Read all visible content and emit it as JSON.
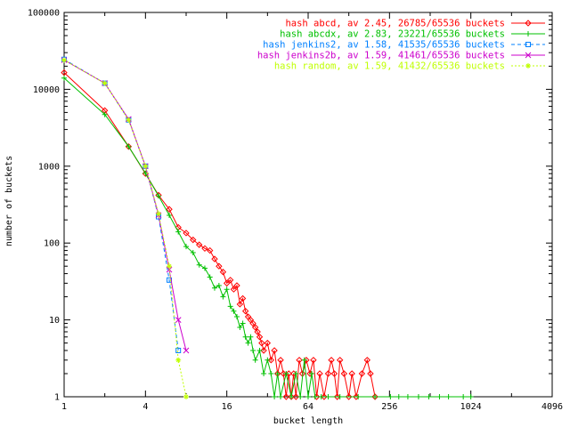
{
  "chart_data": {
    "type": "line",
    "title": "",
    "xlabel": "bucket length",
    "ylabel": "number of buckets",
    "x_scale": "log2",
    "y_scale": "log10",
    "xlim": [
      1,
      4096
    ],
    "ylim": [
      1,
      100000
    ],
    "x_ticks": [
      "1",
      "4",
      "16",
      "64",
      "256",
      "1024",
      "4096"
    ],
    "y_ticks": [
      "1",
      "10",
      "100",
      "1000",
      "10000",
      "100000"
    ],
    "grid": false,
    "legend_position": "top-right",
    "series": [
      {
        "name": "hash abcd, av 2.45, 26785/65536 buckets",
        "color": "#ff0000",
        "marker": "diamond",
        "points": [
          [
            1,
            16500
          ],
          [
            2,
            5300
          ],
          [
            3,
            1800
          ],
          [
            4,
            800
          ],
          [
            5,
            420
          ],
          [
            6,
            275
          ],
          [
            7,
            160
          ],
          [
            8,
            135
          ],
          [
            9,
            110
          ],
          [
            10,
            95
          ],
          [
            11,
            85
          ],
          [
            12,
            80
          ],
          [
            13,
            62
          ],
          [
            14,
            50
          ],
          [
            15,
            42
          ],
          [
            16,
            30
          ],
          [
            17,
            33
          ],
          [
            18,
            25
          ],
          [
            19,
            28
          ],
          [
            20,
            16
          ],
          [
            21,
            19
          ],
          [
            22,
            13
          ],
          [
            23,
            11
          ],
          [
            24,
            10
          ],
          [
            25,
            9
          ],
          [
            26,
            8
          ],
          [
            27,
            7
          ],
          [
            28,
            6
          ],
          [
            29,
            5
          ],
          [
            30,
            4
          ],
          [
            32,
            5
          ],
          [
            34,
            3
          ],
          [
            36,
            4
          ],
          [
            38,
            2
          ],
          [
            40,
            3
          ],
          [
            42,
            2
          ],
          [
            44,
            1
          ],
          [
            46,
            2
          ],
          [
            48,
            1
          ],
          [
            50,
            2
          ],
          [
            52,
            1
          ],
          [
            55,
            3
          ],
          [
            58,
            2
          ],
          [
            62,
            3
          ],
          [
            66,
            2
          ],
          [
            70,
            3
          ],
          [
            74,
            1
          ],
          [
            78,
            2
          ],
          [
            84,
            1
          ],
          [
            90,
            2
          ],
          [
            95,
            3
          ],
          [
            100,
            2
          ],
          [
            105,
            1
          ],
          [
            110,
            3
          ],
          [
            118,
            2
          ],
          [
            128,
            1
          ],
          [
            135,
            2
          ],
          [
            145,
            1
          ],
          [
            160,
            2
          ],
          [
            175,
            3
          ],
          [
            185,
            2
          ],
          [
            200,
            1
          ]
        ]
      },
      {
        "name": "hash abcdx, av 2.83, 23221/65536 buckets",
        "color": "#00c000",
        "marker": "plus",
        "points": [
          [
            1,
            14000
          ],
          [
            2,
            4700
          ],
          [
            3,
            1800
          ],
          [
            4,
            810
          ],
          [
            5,
            410
          ],
          [
            6,
            230
          ],
          [
            7,
            140
          ],
          [
            8,
            90
          ],
          [
            9,
            75
          ],
          [
            10,
            52
          ],
          [
            11,
            47
          ],
          [
            12,
            36
          ],
          [
            13,
            26
          ],
          [
            14,
            28
          ],
          [
            15,
            20
          ],
          [
            16,
            25
          ],
          [
            17,
            15
          ],
          [
            18,
            13
          ],
          [
            19,
            11
          ],
          [
            20,
            8
          ],
          [
            21,
            9
          ],
          [
            22,
            6
          ],
          [
            23,
            5
          ],
          [
            24,
            6
          ],
          [
            25,
            4
          ],
          [
            26,
            3
          ],
          [
            28,
            4
          ],
          [
            30,
            2
          ],
          [
            32,
            3
          ],
          [
            34,
            2
          ],
          [
            36,
            1
          ],
          [
            38,
            2
          ],
          [
            40,
            1
          ],
          [
            44,
            2
          ],
          [
            48,
            1
          ],
          [
            52,
            2
          ],
          [
            56,
            1
          ],
          [
            60,
            3
          ],
          [
            64,
            1
          ],
          [
            68,
            2
          ],
          [
            72,
            1
          ],
          [
            80,
            1
          ],
          [
            90,
            1
          ],
          [
            110,
            1
          ],
          [
            150,
            1
          ],
          [
            200,
            1
          ],
          [
            260,
            1
          ],
          [
            300,
            1
          ],
          [
            350,
            1
          ],
          [
            420,
            1
          ],
          [
            500,
            1
          ],
          [
            600,
            1
          ],
          [
            700,
            1
          ],
          [
            900,
            1
          ],
          [
            1024,
            1
          ]
        ]
      },
      {
        "name": "hash jenkins2, av 1.58, 41535/65536 buckets",
        "color": "#0080ff",
        "marker": "square",
        "points": [
          [
            1,
            24500
          ],
          [
            2,
            12000
          ],
          [
            3,
            4000
          ],
          [
            4,
            1000
          ],
          [
            5,
            220
          ],
          [
            6,
            33
          ],
          [
            7,
            4
          ]
        ]
      },
      {
        "name": "hash jenkins2b, av 1.59, 41461/65536 buckets",
        "color": "#cc00cc",
        "marker": "x",
        "points": [
          [
            1,
            24000
          ],
          [
            2,
            12000
          ],
          [
            3,
            4100
          ],
          [
            4,
            1000
          ],
          [
            5,
            230
          ],
          [
            6,
            45
          ],
          [
            7,
            10
          ],
          [
            8,
            4
          ]
        ]
      },
      {
        "name": "hash random, av 1.59, 41432/65536 buckets",
        "color": "#bfff00",
        "marker": "star",
        "points": [
          [
            1,
            24000
          ],
          [
            2,
            12000
          ],
          [
            3,
            4000
          ],
          [
            4,
            1000
          ],
          [
            5,
            240
          ],
          [
            6,
            50
          ],
          [
            7,
            3
          ],
          [
            8,
            1
          ]
        ]
      }
    ]
  }
}
